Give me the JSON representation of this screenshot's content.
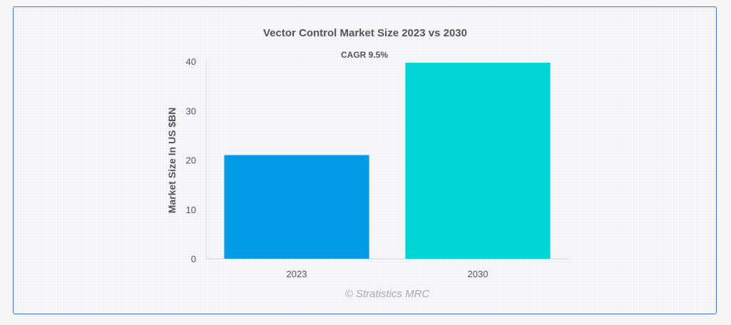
{
  "chart_data": {
    "type": "bar",
    "title": "Vector Control Market Size 2023 vs 2030",
    "annotation": "CAGR 9.5%",
    "ylabel": "Market Size In US $BN",
    "xlabel": "",
    "categories": [
      "2023",
      "2030"
    ],
    "values": [
      21,
      39.7
    ],
    "colors": [
      "#039be5",
      "#00d4d4"
    ],
    "ylim": [
      0,
      40
    ],
    "yticks": [
      0,
      10,
      20,
      30,
      40
    ],
    "grid": false,
    "legend": "none"
  },
  "credit": "© Stratistics MRC"
}
